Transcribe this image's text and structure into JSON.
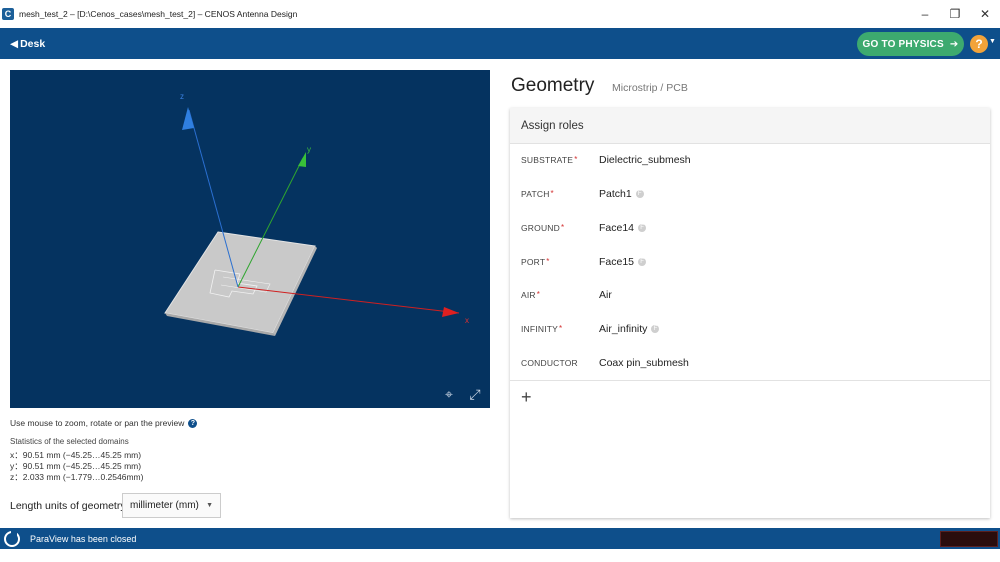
{
  "window": {
    "title": "mesh_test_2 – [D:\\Cenos_cases\\mesh_test_2] – CENOS Antenna Design",
    "controls": [
      "minimize",
      "restore",
      "close"
    ]
  },
  "header": {
    "back_label": "Desk",
    "go_physics_label": "GO TO PHYSICS",
    "help_label": "?"
  },
  "viewport": {
    "axis_labels": {
      "x": "x",
      "y": "y",
      "z": "z"
    },
    "colors": {
      "background": "#053360",
      "x_axis": "#d02020",
      "y_axis": "#2fa52f",
      "z_axis": "#2a6fd0",
      "plate": "#c9c9c9"
    }
  },
  "left": {
    "hint": "Use mouse to zoom, rotate or pan the preview",
    "stats_title": "Statistics of the selected domains",
    "stats": [
      "x：90.51 mm  (−45.25…45.25  mm)",
      "y：90.51 mm  (−45.25…45.25  mm)",
      "z：2.033 mm  (−1.779…0.2546mm)"
    ],
    "units_label": "Length units of geometry",
    "units_value": "millimeter (mm)"
  },
  "geometry": {
    "title": "Geometry",
    "subtitle": "Microstrip / PCB",
    "card_title": "Assign roles",
    "roles": [
      {
        "label": "SUBSTRATE",
        "required": "*",
        "value": "Dielectric_submesh",
        "badge": ""
      },
      {
        "label": "PATCH",
        "required": "*",
        "value": "Patch1",
        "badge": "F"
      },
      {
        "label": "GROUND",
        "required": "*",
        "value": "Face14",
        "badge": "F"
      },
      {
        "label": "PORT",
        "required": "*",
        "value": "Face15",
        "badge": "F"
      },
      {
        "label": "AIR",
        "required": "*",
        "value": "Air",
        "badge": ""
      },
      {
        "label": "INFINITY",
        "required": "*",
        "value": "Air_infinity",
        "badge": "F"
      },
      {
        "label": "CONDUCTOR",
        "required": "",
        "value": "Coax pin_submesh",
        "badge": ""
      }
    ],
    "add_label": "+"
  },
  "status": {
    "message": "ParaView has been closed"
  }
}
